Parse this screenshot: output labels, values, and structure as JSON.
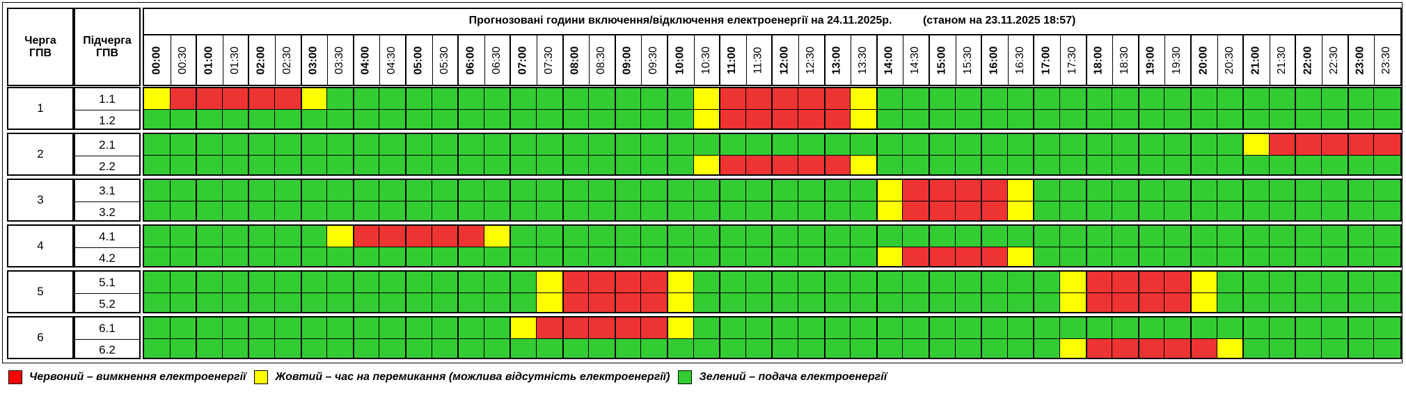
{
  "header": {
    "queue_label": "Черга ГПВ",
    "subqueue_label": "Підчерга ГПВ",
    "title": "Прогнозовані години включення/відключення електроенергії на 24.11.2025р.          (станом на 23.11.2025 18:57)"
  },
  "times": [
    "00:00",
    "00:30",
    "01:00",
    "01:30",
    "02:00",
    "02:30",
    "03:00",
    "03:30",
    "04:00",
    "04:30",
    "05:00",
    "05:30",
    "06:00",
    "06:30",
    "07:00",
    "07:30",
    "08:00",
    "08:30",
    "09:00",
    "09:30",
    "10:00",
    "10:30",
    "11:00",
    "11:30",
    "12:00",
    "12:30",
    "13:00",
    "13:30",
    "14:00",
    "14:30",
    "15:00",
    "15:30",
    "16:00",
    "16:30",
    "17:00",
    "17:30",
    "18:00",
    "18:30",
    "19:00",
    "19:30",
    "20:00",
    "20:30",
    "21:00",
    "21:30",
    "22:00",
    "22:30",
    "23:00",
    "23:30"
  ],
  "colors": {
    "R": "#ee3333",
    "Y": "#ffff00",
    "G": "#33cc33"
  },
  "queues": [
    {
      "label": "1",
      "subqueues": [
        {
          "label": "1.1",
          "slots": "YRRRRRYGGGGGGGGGGGGGGYRRRRRYGGGGGGGGGGGGGGGGGGGG"
        },
        {
          "label": "1.2",
          "slots": "GGGGGGGGGGGGGGGGGGGGGYRRRRRYGGGGGGGGGGGGGGGGGGGG"
        }
      ]
    },
    {
      "label": "2",
      "subqueues": [
        {
          "label": "2.1",
          "slots": "GGGGGGGGGGGGGGGGGGGGGGGGGGGGGGGGGGGGGGGGGGYRRRRR"
        },
        {
          "label": "2.2",
          "slots": "GGGGGGGGGGGGGGGGGGGGGYRRRRRYGGGGGGGGGGGGGGGGGGGG"
        }
      ]
    },
    {
      "label": "3",
      "subqueues": [
        {
          "label": "3.1",
          "slots": "GGGGGGGGGGGGGGGGGGGGGGGGGGGGYRRRRYGGGGGGGGGGGGGG"
        },
        {
          "label": "3.2",
          "slots": "GGGGGGGGGGGGGGGGGGGGGGGGGGGGYRRRRYGGGGGGGGGGGGGG"
        }
      ]
    },
    {
      "label": "4",
      "subqueues": [
        {
          "label": "4.1",
          "slots": "GGGGGGGYRRRRRYGGGGGGGGGGGGGGGGGGGGGGGGGGGGGGGGGG"
        },
        {
          "label": "4.2",
          "slots": "GGGGGGGGGGGGGGGGGGGGGGGGGGGGYRRRRYGGGGGGGGGGGGGG"
        }
      ]
    },
    {
      "label": "5",
      "subqueues": [
        {
          "label": "5.1",
          "slots": "GGGGGGGGGGGGGGGYRRRRYGGGGGGGGGGGGGGYRRRRYGGGGGGG"
        },
        {
          "label": "5.2",
          "slots": "GGGGGGGGGGGGGGGYRRRRYGGGGGGGGGGGGGGYRRRRYGGGGGGG"
        }
      ]
    },
    {
      "label": "6",
      "subqueues": [
        {
          "label": "6.1",
          "slots": "GGGGGGGGGGGGGGYRRRRRYGGGGGGGGGGGGGGGGGGGGGGGGGGG"
        },
        {
          "label": "6.2",
          "slots": "GGGGGGGGGGGGGGGGGGGGGGGGGGGGGGGGGGGYRRRRRYGGGGGG"
        }
      ]
    }
  ],
  "legend": [
    {
      "color": "#ff0000",
      "text": "Червоний – вимкнення електроенергії"
    },
    {
      "color": "#ffff00",
      "text": "Жовтий – час на перемикання (можлива відсутність електроенергії)"
    },
    {
      "color": "#33cc33",
      "text": "Зелений – подача електроенергії"
    }
  ]
}
